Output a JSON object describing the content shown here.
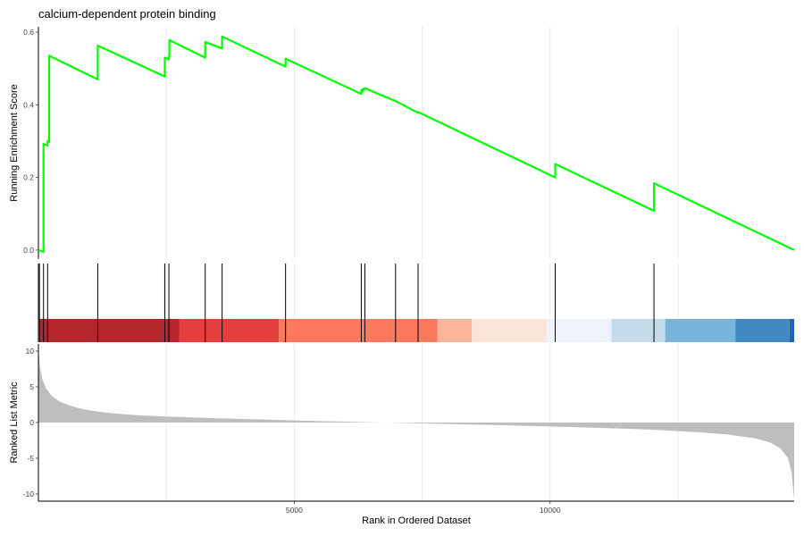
{
  "chart_data": {
    "type": "line",
    "title": "calcium-dependent protein binding",
    "xlabel": "Rank in Ordered Dataset",
    "xlim": [
      0,
      14770
    ],
    "x_ticks": [
      5000,
      10000
    ],
    "x_tick_labels": [
      "5000",
      "10000"
    ],
    "x_grid": [
      2500,
      5000,
      7500,
      10000,
      12500
    ],
    "colors": {
      "curve": "#00ff00",
      "hit": "#000000",
      "metric_fill": "#bebebe",
      "grid": "#ebebeb"
    },
    "panels": {
      "enrichment": {
        "ylabel": "Running Enrichment Score",
        "ylim": [
          -0.01,
          0.6
        ],
        "y_ticks": [
          0.0,
          0.2,
          0.4,
          0.6
        ],
        "y_tick_labels": [
          "0.0",
          "0.2",
          "0.4",
          "0.6"
        ],
        "x": [
          0,
          100,
          100,
          180,
          180,
          210,
          210,
          1160,
          1160,
          2470,
          2470,
          2550,
          2550,
          2560,
          2560,
          3260,
          3260,
          3590,
          3590,
          4830,
          4830,
          6310,
          6310,
          6340,
          6340,
          6380,
          6380,
          6980,
          6980,
          7420,
          7420,
          10100,
          10100,
          12030,
          12030,
          14770
        ],
        "y": [
          0.0,
          -0.005,
          0.292,
          0.288,
          0.3,
          0.298,
          0.535,
          0.47,
          0.563,
          0.478,
          0.53,
          0.525,
          0.533,
          0.533,
          0.578,
          0.53,
          0.573,
          0.555,
          0.588,
          0.505,
          0.527,
          0.43,
          0.44,
          0.437,
          0.444,
          0.443,
          0.446,
          0.41,
          0.41,
          0.378,
          0.38,
          0.2,
          0.237,
          0.108,
          0.184,
          0.0
        ]
      },
      "hits": {
        "positions": [
          20,
          100,
          180,
          1160,
          2470,
          2550,
          3260,
          3590,
          4830,
          6310,
          6380,
          6980,
          7420,
          10100,
          12030
        ]
      },
      "color_strip": {
        "segments": [
          {
            "start": 0,
            "end": 2750,
            "color": "#b2262c"
          },
          {
            "start": 2750,
            "end": 4700,
            "color": "#e3403d"
          },
          {
            "start": 4700,
            "end": 7800,
            "color": "#fc785e"
          },
          {
            "start": 7800,
            "end": 8470,
            "color": "#fcb49b"
          },
          {
            "start": 8470,
            "end": 9930,
            "color": "#fce3d8"
          },
          {
            "start": 9930,
            "end": 11200,
            "color": "#edf2fb"
          },
          {
            "start": 11200,
            "end": 12250,
            "color": "#c5dbea"
          },
          {
            "start": 12250,
            "end": 13620,
            "color": "#79b5da"
          },
          {
            "start": 13620,
            "end": 14680,
            "color": "#4289c4"
          },
          {
            "start": 14680,
            "end": 14770,
            "color": "#2364ad"
          }
        ]
      },
      "metric": {
        "ylabel": "Ranked List Metric",
        "ylim": [
          -11,
          11
        ],
        "y_ticks": [
          10,
          5,
          0,
          -5,
          -10
        ],
        "y_tick_labels": [
          "10",
          "5",
          "0",
          "-5",
          "-10"
        ],
        "x": [
          0,
          30,
          80,
          150,
          250,
          400,
          600,
          800,
          1000,
          1300,
          1600,
          2000,
          2500,
          3000,
          3500,
          4000,
          4500,
          5000,
          5500,
          6000,
          6500,
          7000,
          7500,
          8000,
          8500,
          9000,
          9500,
          10000,
          10500,
          11000,
          11500,
          12000,
          12500,
          13000,
          13500,
          14000,
          14300,
          14500,
          14650,
          14720,
          14770
        ],
        "y": [
          10.5,
          7.8,
          6.0,
          4.8,
          3.8,
          3.0,
          2.4,
          2.0,
          1.7,
          1.4,
          1.2,
          1.0,
          0.85,
          0.72,
          0.6,
          0.5,
          0.4,
          0.3,
          0.2,
          0.12,
          0.04,
          -0.04,
          -0.12,
          -0.2,
          -0.28,
          -0.36,
          -0.45,
          -0.55,
          -0.65,
          -0.75,
          -0.87,
          -1.0,
          -1.2,
          -1.4,
          -1.7,
          -2.2,
          -2.8,
          -3.6,
          -5.0,
          -7.0,
          -10.8
        ]
      }
    }
  }
}
